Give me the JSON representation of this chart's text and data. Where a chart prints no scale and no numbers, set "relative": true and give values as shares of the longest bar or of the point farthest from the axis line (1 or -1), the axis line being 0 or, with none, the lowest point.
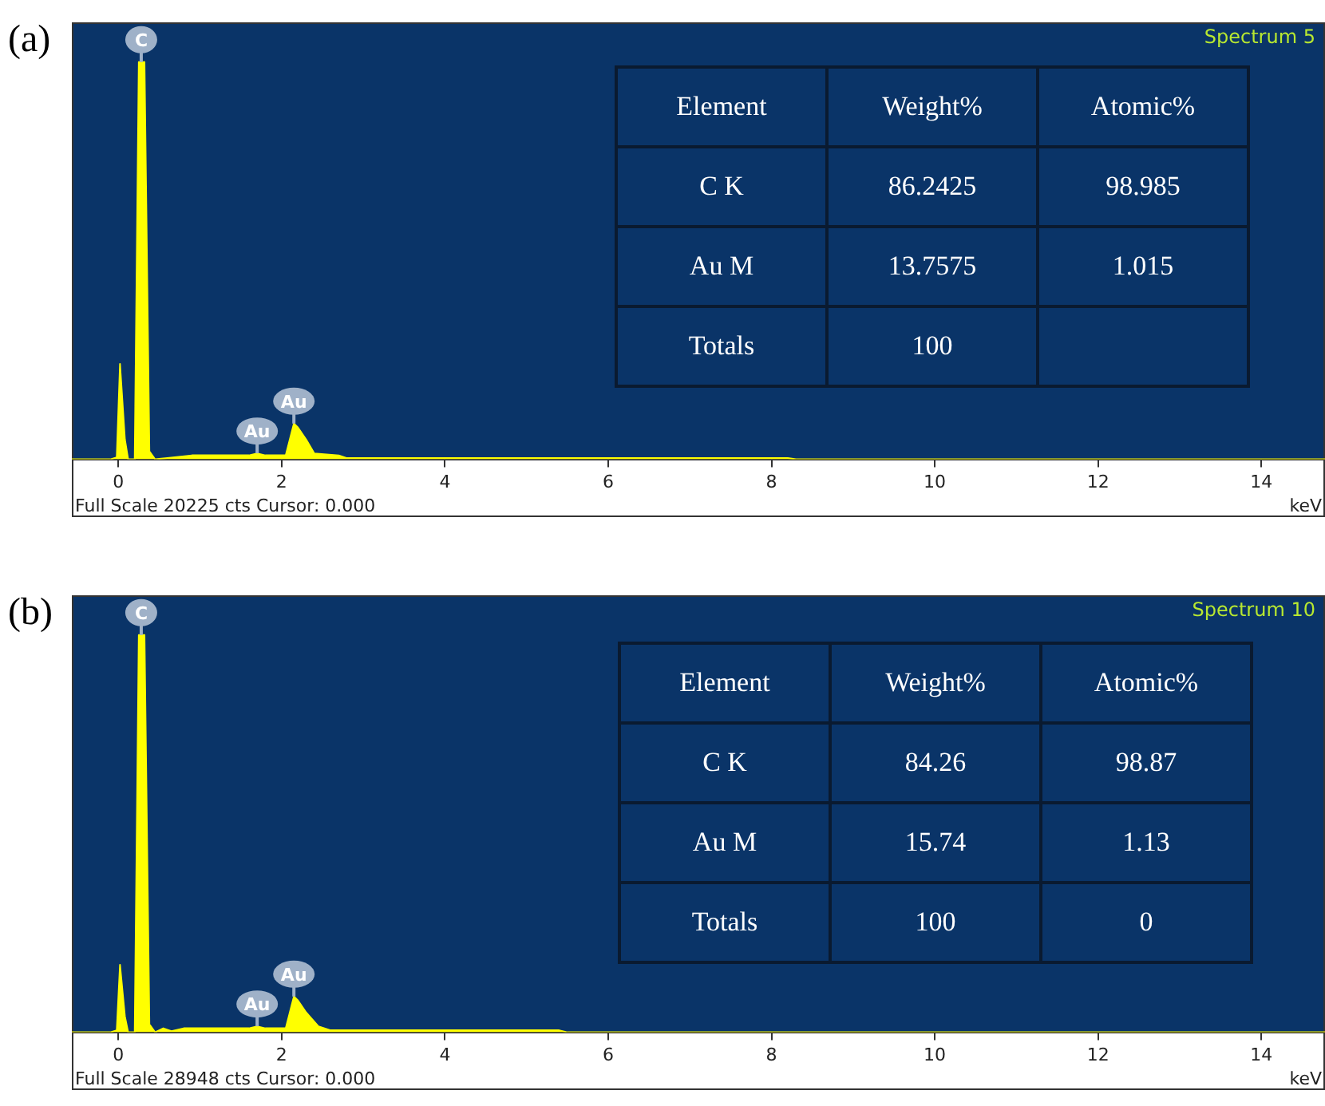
{
  "chart_data": [
    {
      "type": "area",
      "title": "Spectrum 5",
      "xlabel": "keV",
      "relative": true,
      "legend": false,
      "grid": false,
      "marker": "none",
      "tick_labels": "x",
      "xlim": [
        -0.57,
        14.78
      ],
      "xticks": [
        0,
        2,
        4,
        6,
        8,
        10,
        12,
        14
      ],
      "x": [
        -0.57,
        -0.1,
        -0.02,
        0.02,
        0.08,
        0.12,
        0.2,
        0.25,
        0.32,
        0.38,
        0.45,
        0.6,
        0.9,
        1.6,
        1.7,
        1.8,
        2.05,
        2.15,
        2.2,
        2.3,
        2.4,
        2.7,
        2.8,
        8.2,
        8.3,
        14.78
      ],
      "series": [
        {
          "color": "#ffff00",
          "values": [
            0,
            0,
            0.005,
            0.24,
            0.05,
            0,
            0,
            1,
            1,
            0.02,
            0,
            0.003,
            0.01,
            0.01,
            0.015,
            0.01,
            0.01,
            0.09,
            0.08,
            0.05,
            0.015,
            0.01,
            0.003,
            0.003,
            0,
            0
          ]
        }
      ],
      "annotations": [
        "(a)",
        "Full Scale 20225 cts Cursor: 0.000",
        "Element",
        "Weight%",
        "Atomic%",
        "C K",
        "86.2425",
        "98.985",
        "Au M",
        "13.7575",
        "1.015",
        "Totals",
        "100",
        {
          "text": "C",
          "x": 0.28,
          "y": 1
        },
        {
          "text": "Au",
          "x": 1.7,
          "y": 0.015
        },
        {
          "text": "Au",
          "x": 2.15,
          "y": 0.09
        }
      ]
    },
    {
      "type": "area",
      "title": "Spectrum 10",
      "xlabel": "keV",
      "relative": true,
      "legend": false,
      "grid": false,
      "marker": "none",
      "tick_labels": "x",
      "xlim": [
        -0.57,
        14.78
      ],
      "xticks": [
        0,
        2,
        4,
        6,
        8,
        10,
        12,
        14
      ],
      "x": [
        -0.57,
        -0.1,
        -0.02,
        0.02,
        0.08,
        0.12,
        0.2,
        0.25,
        0.32,
        0.38,
        0.45,
        0.55,
        0.65,
        0.8,
        1.6,
        1.7,
        1.8,
        2.05,
        2.15,
        2.2,
        2.3,
        2.45,
        2.6,
        5.4,
        5.5,
        14.78
      ],
      "series": [
        {
          "color": "#ffff00",
          "values": [
            0,
            0,
            0.005,
            0.17,
            0.04,
            0,
            0,
            1,
            1,
            0.02,
            0,
            0.01,
            0.003,
            0.01,
            0.01,
            0.015,
            0.01,
            0.01,
            0.09,
            0.08,
            0.05,
            0.015,
            0.005,
            0.005,
            0,
            0
          ]
        }
      ],
      "annotations": [
        "(b)",
        "Full Scale 28948 cts Cursor: 0.000",
        "Element",
        "Weight%",
        "Atomic%",
        "C K",
        "84.26",
        "98.87",
        "Au M",
        "15.74",
        "1.13",
        "Totals",
        "100",
        "0",
        {
          "text": "C",
          "x": 0.28,
          "y": 1
        },
        {
          "text": "Au",
          "x": 1.7,
          "y": 0.015
        },
        {
          "text": "Au",
          "x": 2.15,
          "y": 0.09
        }
      ]
    }
  ]
}
